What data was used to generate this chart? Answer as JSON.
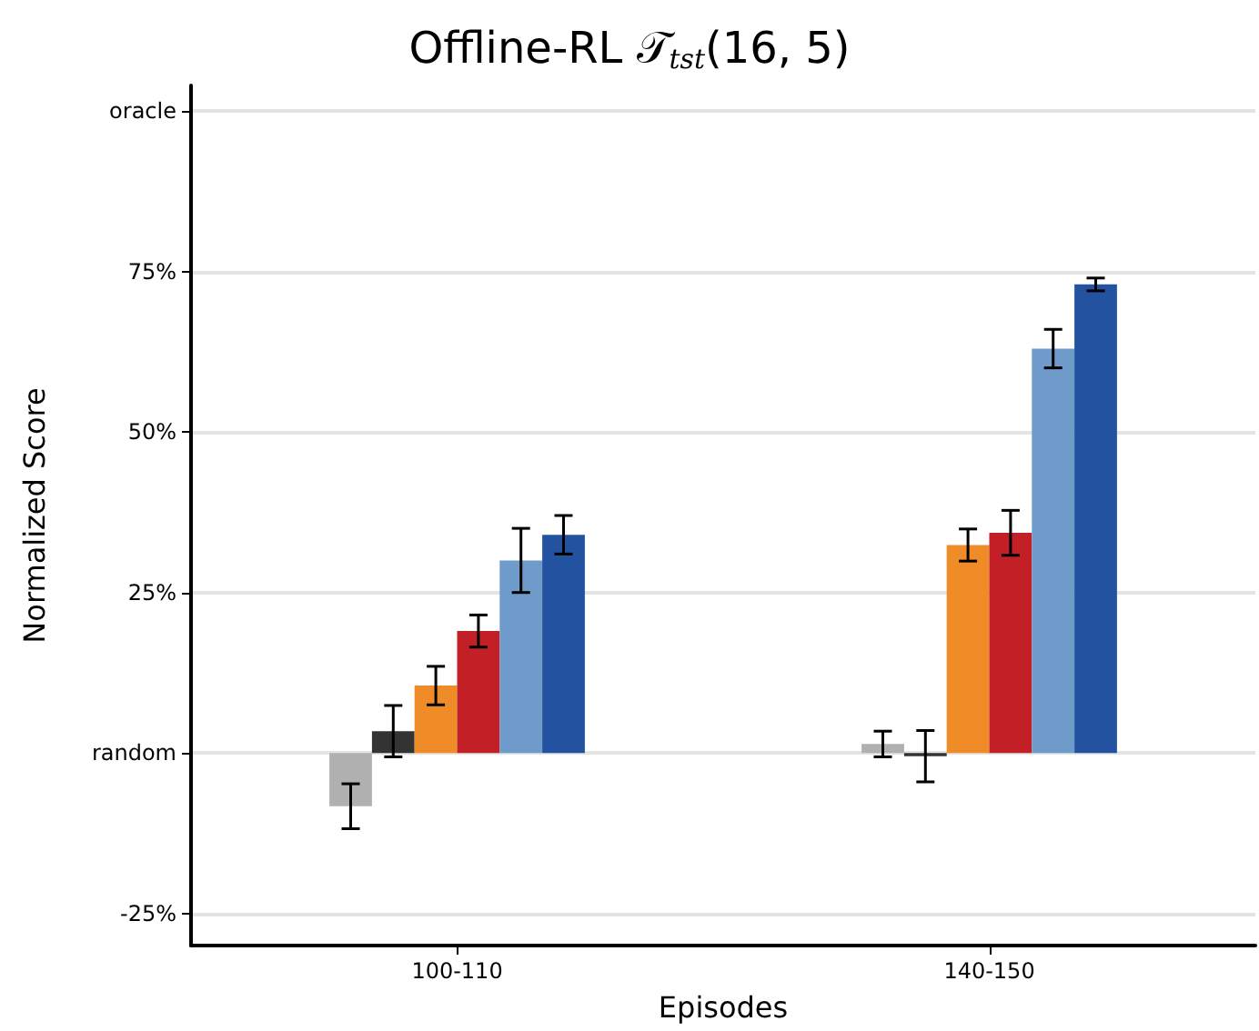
{
  "chart_data": {
    "type": "bar",
    "title": "Offline-RL 𝒯$_{tst}$(16, 5)",
    "xlabel": "Episodes",
    "ylabel": "Normalized Score",
    "categories": [
      "100-110",
      "140-150"
    ],
    "series": [
      {
        "color": "#b0b0b0",
        "values": [
          -8.3,
          1.4
        ],
        "errors": [
          3.5,
          2
        ]
      },
      {
        "color": "#333333",
        "values": [
          3.4,
          -0.5
        ],
        "errors": [
          4,
          4
        ]
      },
      {
        "color": "#f08c28",
        "values": [
          10.5,
          32.4
        ],
        "errors": [
          3,
          2.5
        ]
      },
      {
        "color": "#c21f27",
        "values": [
          19,
          34.3
        ],
        "errors": [
          2.5,
          3.5
        ]
      },
      {
        "color": "#6f9bcb",
        "values": [
          30,
          63
        ],
        "errors": [
          5,
          3
        ]
      },
      {
        "color": "#2353a0",
        "values": [
          34,
          73
        ],
        "errors": [
          3,
          1
        ]
      }
    ],
    "ylim": [
      -30,
      104
    ],
    "yticks": [
      {
        "value": -25,
        "label": "-25%"
      },
      {
        "value": 0,
        "label": "random"
      },
      {
        "value": 25,
        "label": "25%"
      },
      {
        "value": 50,
        "label": "50%"
      },
      {
        "value": 75,
        "label": "75%"
      },
      {
        "value": 100,
        "label": "oracle"
      }
    ],
    "grid": "y"
  }
}
